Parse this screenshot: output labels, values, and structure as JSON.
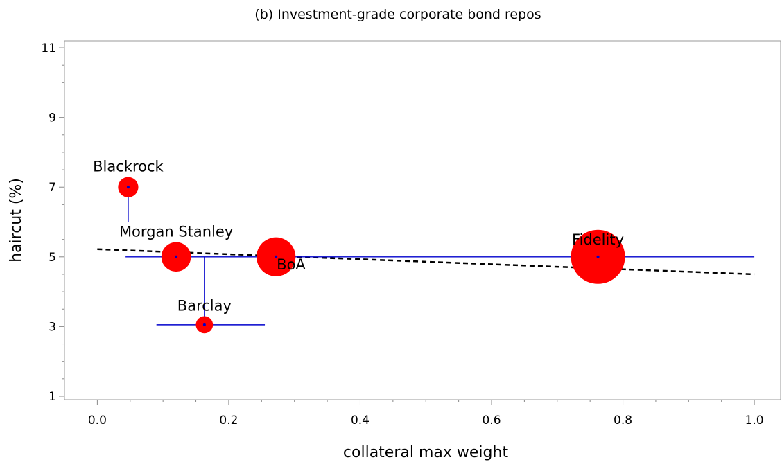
{
  "chart_data": {
    "type": "scatter",
    "title": "(b) Investment-grade corporate bond repos",
    "xlabel": "collateral max weight",
    "ylabel": "haircut (%)",
    "xlim": [
      -0.05,
      1.04
    ],
    "ylim": [
      0.9,
      11.2
    ],
    "x_ticks": [
      0.0,
      0.2,
      0.4,
      0.6,
      0.8,
      1.0
    ],
    "x_tick_labels": [
      "0.0",
      "0.2",
      "0.4",
      "0.6",
      "0.8",
      "1.0"
    ],
    "y_ticks": [
      1,
      3,
      5,
      7,
      9,
      11
    ],
    "y_tick_labels": [
      "1",
      "3",
      "5",
      "7",
      "9",
      "11"
    ],
    "grid": false,
    "bubble_color": "#ff0000",
    "range_color": "#0000cc",
    "fit_color": "#000000",
    "points": [
      {
        "label": "Blackrock",
        "x": 0.047,
        "y": 7.0,
        "size": 0.14,
        "x_range": null,
        "y_range": [
          6.0,
          7.0
        ]
      },
      {
        "label": "Morgan Stanley",
        "x": 0.12,
        "y": 5.0,
        "size": 0.3,
        "x_range": [
          0.043,
          1.0
        ],
        "y_range": null
      },
      {
        "label": "Barclay",
        "x": 0.163,
        "y": 3.05,
        "size": 0.1,
        "x_range": [
          0.09,
          0.255
        ],
        "y_range": [
          3.05,
          5.0
        ]
      },
      {
        "label": "BoA",
        "x": 0.272,
        "y": 5.0,
        "size": 0.52,
        "x_range": null,
        "y_range": null
      },
      {
        "label": "Fidelity",
        "x": 0.762,
        "y": 5.0,
        "size": 1.0,
        "x_range": null,
        "y_range": null
      }
    ],
    "fit_line": {
      "style": "dashed",
      "x": [
        0.0,
        1.0
      ],
      "y": [
        5.22,
        4.5
      ]
    }
  }
}
